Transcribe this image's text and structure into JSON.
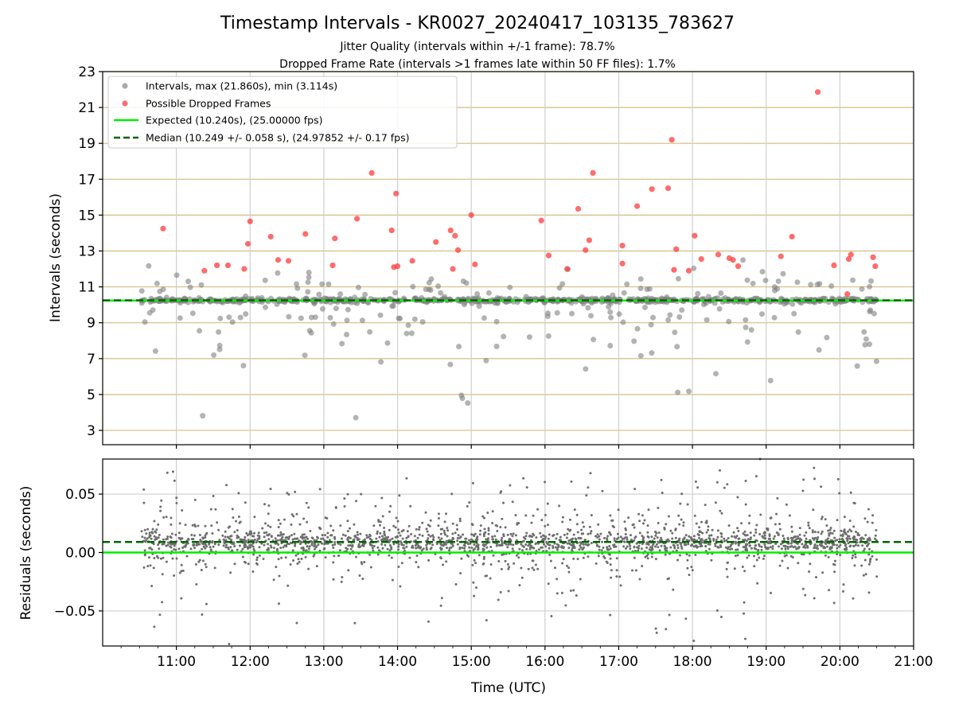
{
  "title": "Timestamp Intervals - KR0027_20240417_103135_783627",
  "subtitle_line1": "Jitter Quality (intervals within +/-1 frame): 78.7%",
  "subtitle_line2": "Dropped Frame Rate (intervals >1 frames late within 50 FF files): 1.7%",
  "colors": {
    "intervals": "#808080",
    "dropped": "#ff3b3b",
    "expected": "#00ee00",
    "median": "#006400",
    "hgrid_top": "#d2be82",
    "grid": "#cfcfcf"
  },
  "chart_data": [
    {
      "type": "scatter",
      "panel": "intervals",
      "ylabel": "Intervals (seconds)",
      "ylim": [
        2.2,
        23
      ],
      "yticks": [
        3,
        5,
        7,
        9,
        11,
        13,
        15,
        17,
        19,
        21,
        23
      ],
      "xlim_hours": [
        10.0,
        21.0
      ],
      "grid": true,
      "legend": {
        "placement": "top-left",
        "entries": [
          "Intervals, max (21.860s), min (3.114s)",
          "Possible Dropped Frames",
          "Expected (10.240s), (25.00000 fps)",
          "Median (10.249 +/- 0.058 s), (24.97852 +/- 0.17 fps)"
        ]
      },
      "expected_value": 10.24,
      "median_value": 10.249,
      "dropped_frames": [
        [
          10.82,
          14.25
        ],
        [
          11.38,
          11.9
        ],
        [
          11.55,
          12.2
        ],
        [
          11.7,
          12.2
        ],
        [
          11.92,
          12.0
        ],
        [
          11.97,
          13.4
        ],
        [
          12.0,
          14.65
        ],
        [
          12.28,
          13.8
        ],
        [
          12.38,
          12.5
        ],
        [
          12.52,
          12.45
        ],
        [
          12.75,
          13.95
        ],
        [
          13.12,
          12.2
        ],
        [
          13.15,
          13.7
        ],
        [
          13.45,
          14.8
        ],
        [
          13.65,
          17.35
        ],
        [
          13.92,
          14.15
        ],
        [
          13.95,
          12.1
        ],
        [
          13.98,
          16.2
        ],
        [
          14.0,
          12.15
        ],
        [
          14.2,
          12.45
        ],
        [
          14.52,
          13.5
        ],
        [
          14.72,
          14.15
        ],
        [
          14.75,
          12.0
        ],
        [
          14.78,
          13.85
        ],
        [
          14.82,
          13.05
        ],
        [
          15.0,
          15.0
        ],
        [
          15.05,
          12.25
        ],
        [
          15.95,
          14.7
        ],
        [
          16.05,
          12.75
        ],
        [
          16.3,
          12.0
        ],
        [
          16.45,
          15.35
        ],
        [
          16.55,
          13.05
        ],
        [
          16.6,
          13.6
        ],
        [
          16.65,
          17.35
        ],
        [
          17.05,
          13.3
        ],
        [
          17.05,
          12.3
        ],
        [
          17.25,
          15.5
        ],
        [
          17.45,
          16.45
        ],
        [
          17.67,
          16.5
        ],
        [
          17.72,
          19.2
        ],
        [
          17.75,
          11.95
        ],
        [
          17.78,
          13.1
        ],
        [
          17.95,
          11.9
        ],
        [
          18.03,
          13.85
        ],
        [
          18.12,
          12.55
        ],
        [
          18.35,
          12.8
        ],
        [
          18.5,
          12.6
        ],
        [
          18.55,
          12.5
        ],
        [
          18.62,
          12.15
        ],
        [
          19.2,
          12.7
        ],
        [
          19.35,
          13.8
        ],
        [
          19.7,
          21.86
        ],
        [
          19.92,
          12.2
        ],
        [
          20.1,
          10.6
        ],
        [
          20.12,
          12.55
        ],
        [
          20.15,
          12.8
        ],
        [
          20.45,
          12.65
        ],
        [
          20.48,
          12.15
        ]
      ]
    },
    {
      "type": "scatter",
      "panel": "residuals",
      "xlabel": "Time (UTC)",
      "ylabel": "Residuals (seconds)",
      "ylim": [
        -0.08,
        0.08
      ],
      "yticks": [
        -0.05,
        0.0,
        0.05
      ],
      "ytick_labels": [
        "−0.05",
        "0.00",
        "0.05"
      ],
      "xticks_hours": [
        11,
        12,
        13,
        14,
        15,
        16,
        17,
        18,
        19,
        20,
        21
      ],
      "xtick_labels": [
        "11:00",
        "12:00",
        "13:00",
        "14:00",
        "15:00",
        "16:00",
        "17:00",
        "18:00",
        "19:00",
        "20:00",
        "21:00"
      ],
      "expected_residual": 0.0,
      "median_residual": 0.009,
      "data_span_hours": [
        10.53,
        20.5
      ],
      "grid": true
    }
  ]
}
